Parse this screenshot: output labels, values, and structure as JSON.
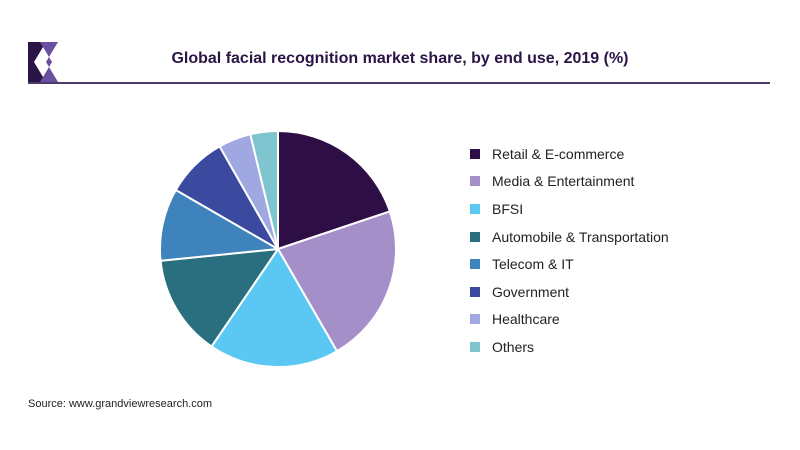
{
  "header": {
    "title": "Global facial recognition market share, by end use, 2019 (%)"
  },
  "colors": {
    "logo_dark": "#2b1446",
    "logo_light": "#6a4fa0",
    "rule": "#4d3a6b"
  },
  "chart_data": {
    "type": "pie",
    "title": "Global facial recognition market share, by end use, 2019 (%)",
    "legend_position": "right",
    "start_angle": "12 o'clock, clockwise",
    "slices": [
      {
        "label": "Retail & E-commerce",
        "value": 20,
        "color": "#2e0f45"
      },
      {
        "label": "Media & Entertainment",
        "value": 22,
        "color": "#a58fc8"
      },
      {
        "label": "BFSI",
        "value": 18,
        "color": "#5bc8f4"
      },
      {
        "label": "Automobile & Transportation",
        "value": 14,
        "color": "#2a6f80"
      },
      {
        "label": "Telecom & IT",
        "value": 10,
        "color": "#3f83bd"
      },
      {
        "label": "Government",
        "value": 8.5,
        "color": "#3b4a9e"
      },
      {
        "label": "Healthcare",
        "value": 4.5,
        "color": "#9fa8e0"
      },
      {
        "label": "Others",
        "value": 3.8,
        "color": "#7ec5cf"
      }
    ]
  },
  "footer": {
    "source": "Source: www.grandviewresearch.com"
  }
}
